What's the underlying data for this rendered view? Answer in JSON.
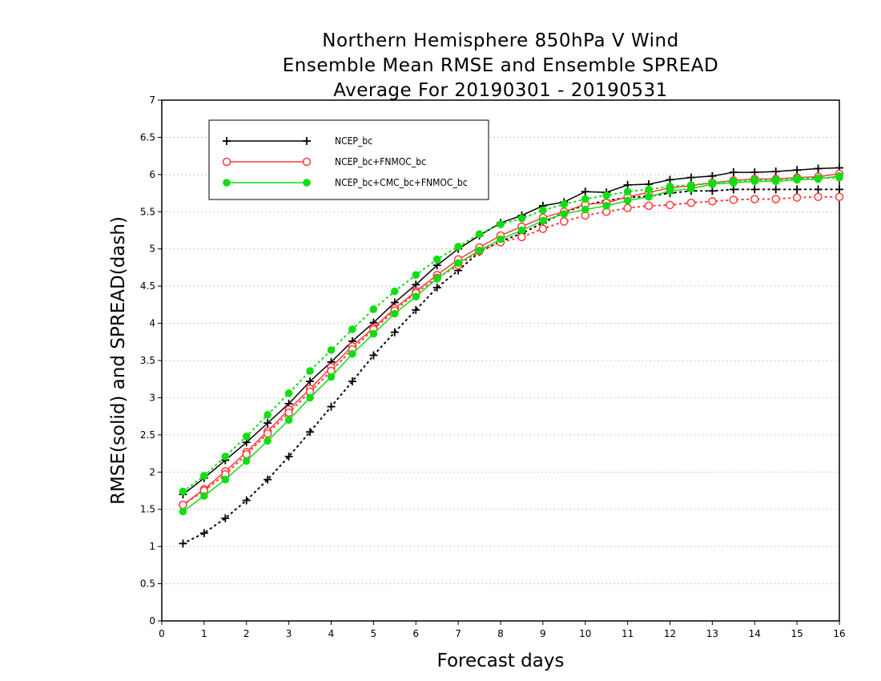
{
  "chart_data": {
    "type": "line",
    "title": [
      "Northern Hemisphere 850hPa V Wind",
      "Ensemble Mean RMSE and Ensemble SPREAD",
      "Average For 20190301 - 20190531"
    ],
    "xlabel": "Forecast days",
    "ylabel": "RMSE(solid) and SPREAD(dash)",
    "xlim": [
      0,
      16
    ],
    "ylim": [
      0,
      7
    ],
    "x_ticks": [
      "0",
      "1",
      "2",
      "3",
      "4",
      "5",
      "6",
      "7",
      "8",
      "9",
      "10",
      "11",
      "12",
      "13",
      "14",
      "15",
      "16"
    ],
    "y_ticks": [
      "0",
      "0.5",
      "1",
      "1.5",
      "2",
      "2.5",
      "3",
      "3.5",
      "4",
      "4.5",
      "5",
      "5.5",
      "6",
      "6.5",
      "7"
    ],
    "grid": "horizontal dotted",
    "legend_position": "top-left",
    "x": [
      0.5,
      1,
      1.5,
      2,
      2.5,
      3,
      3.5,
      4,
      4.5,
      5,
      5.5,
      6,
      6.5,
      7,
      7.5,
      8,
      8.5,
      9,
      9.5,
      10,
      10.5,
      11,
      11.5,
      12,
      12.5,
      13,
      13.5,
      14,
      14.5,
      15,
      15.5,
      16
    ],
    "series": [
      {
        "name": "NCEP_bc",
        "color": "#000000",
        "marker": "plus",
        "rmse": [
          1.7,
          1.92,
          2.16,
          2.4,
          2.66,
          2.92,
          3.22,
          3.48,
          3.76,
          4.01,
          4.28,
          4.52,
          4.78,
          5.0,
          5.18,
          5.35,
          5.45,
          5.58,
          5.63,
          5.77,
          5.76,
          5.86,
          5.87,
          5.93,
          5.96,
          5.98,
          6.03,
          6.03,
          6.04,
          6.06,
          6.08,
          6.09
        ],
        "spread": [
          1.04,
          1.18,
          1.38,
          1.62,
          1.9,
          2.21,
          2.54,
          2.88,
          3.22,
          3.57,
          3.88,
          4.18,
          4.48,
          4.71,
          4.96,
          5.1,
          5.21,
          5.35,
          5.49,
          5.59,
          5.65,
          5.69,
          5.71,
          5.75,
          5.78,
          5.78,
          5.8,
          5.8,
          5.8,
          5.8,
          5.8,
          5.8
        ]
      },
      {
        "name": "NCEP_bc+FNMOC_bc",
        "color": "#ff3b3b",
        "marker": "open-circle",
        "rmse": [
          1.56,
          1.77,
          2.01,
          2.27,
          2.55,
          2.84,
          3.12,
          3.41,
          3.69,
          3.94,
          4.2,
          4.43,
          4.65,
          4.86,
          5.02,
          5.18,
          5.3,
          5.42,
          5.5,
          5.6,
          5.62,
          5.7,
          5.76,
          5.82,
          5.85,
          5.89,
          5.92,
          5.94,
          5.94,
          5.96,
          5.97,
          6.01
        ],
        "spread": [
          1.56,
          1.75,
          1.97,
          2.24,
          2.52,
          2.8,
          3.08,
          3.36,
          3.65,
          3.92,
          4.17,
          4.41,
          4.61,
          4.78,
          4.97,
          5.09,
          5.16,
          5.27,
          5.37,
          5.45,
          5.5,
          5.55,
          5.58,
          5.59,
          5.62,
          5.64,
          5.66,
          5.67,
          5.67,
          5.69,
          5.7,
          5.7
        ]
      },
      {
        "name": "NCEP_bc+CMC_bc+FNMOC_bc",
        "color": "#11dd11",
        "marker": "filled-circle",
        "rmse": [
          1.47,
          1.68,
          1.9,
          2.15,
          2.42,
          2.7,
          3.0,
          3.28,
          3.59,
          3.86,
          4.13,
          4.36,
          4.6,
          4.81,
          4.98,
          5.13,
          5.25,
          5.38,
          5.47,
          5.53,
          5.58,
          5.65,
          5.7,
          5.78,
          5.81,
          5.87,
          5.89,
          5.91,
          5.91,
          5.93,
          5.94,
          5.98
        ],
        "spread": [
          1.74,
          1.95,
          2.21,
          2.48,
          2.77,
          3.06,
          3.36,
          3.64,
          3.92,
          4.19,
          4.43,
          4.65,
          4.86,
          5.03,
          5.2,
          5.33,
          5.41,
          5.52,
          5.6,
          5.67,
          5.72,
          5.77,
          5.8,
          5.84,
          5.86,
          5.89,
          5.91,
          5.93,
          5.93,
          5.95,
          5.95,
          5.96
        ]
      }
    ]
  }
}
